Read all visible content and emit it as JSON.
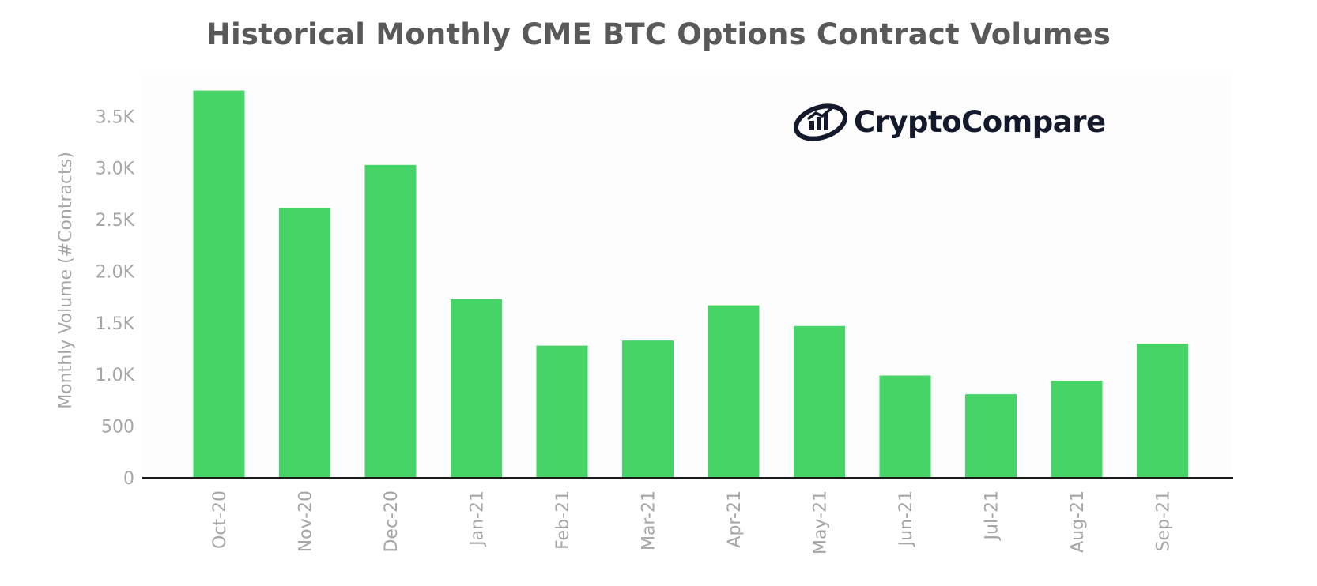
{
  "title": "Historical Monthly CME BTC Options Contract Volumes",
  "logo": {
    "text": "CryptoCompare",
    "icon": "cryptocompare-logo-icon"
  },
  "colors": {
    "bar": "#47d466",
    "axis": "#1a1a1a",
    "text": "#a6a6a6",
    "title": "#595959",
    "plot_bg": "#fdfdfd"
  },
  "chart_data": {
    "type": "bar",
    "title": "Historical Monthly CME BTC Options Contract Volumes",
    "xlabel": "",
    "ylabel": "Monthly Volume (#Contracts)",
    "categories": [
      "Oct-20",
      "Nov-20",
      "Dec-20",
      "Jan-21",
      "Feb-21",
      "Mar-21",
      "Apr-21",
      "May-21",
      "Jun-21",
      "Jul-21",
      "Aug-21",
      "Sep-21"
    ],
    "values": [
      3750,
      2610,
      3030,
      1730,
      1280,
      1330,
      1670,
      1470,
      990,
      810,
      940,
      1300
    ],
    "ylim": [
      0,
      3900
    ],
    "yticks": [
      0,
      500,
      1000,
      1500,
      2000,
      2500,
      3000,
      3500
    ],
    "ytick_labels": [
      "0",
      "500",
      "1.0K",
      "1.5K",
      "2.0K",
      "2.5K",
      "3.0K",
      "3.5K"
    ],
    "grid": false,
    "legend": "none"
  }
}
